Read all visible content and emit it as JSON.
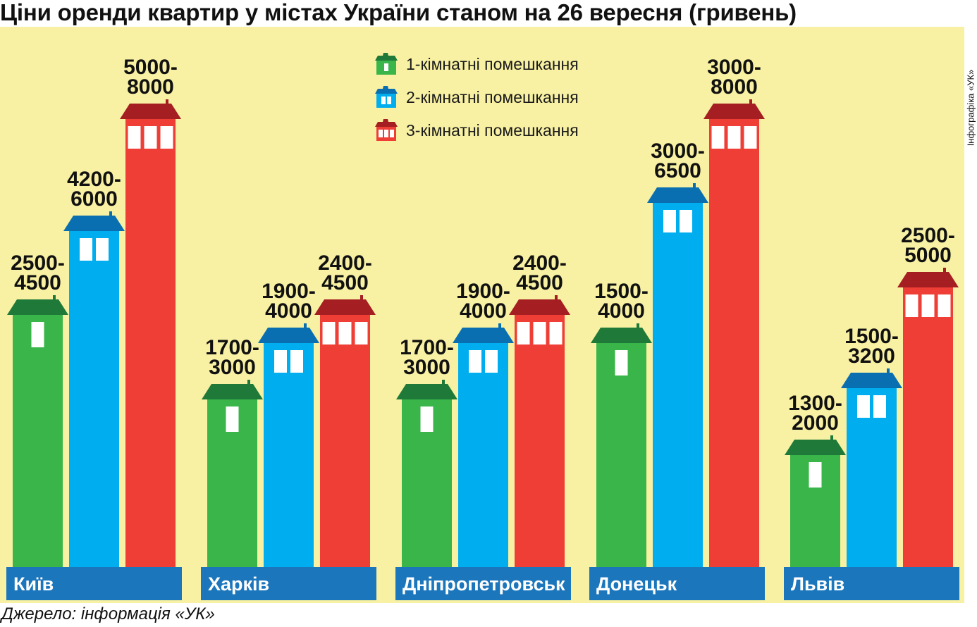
{
  "title": "Ціни оренди квартир у містах України станом на 26 вересня (гривень)",
  "credit": "Інфографіка «УК»",
  "source": "Джерело: інформація «УК»",
  "colors": {
    "background": "#f8f1a3",
    "one_room": "#3ab54a",
    "two_room": "#00aeef",
    "three_room": "#ee3e36",
    "city_box": "#1b76bc"
  },
  "chart_data": {
    "type": "bar",
    "title": "Ціни оренди квартир у містах України станом на 26 вересня (гривень)",
    "categories": [
      "Київ",
      "Харків",
      "Дніпропетровськ",
      "Донецьк",
      "Львів"
    ],
    "series": [
      {
        "name": "1-кімнатні помешкання",
        "labels": [
          "2500-\n4500",
          "1700-\n3000",
          "1700-\n3000",
          "1500-\n4000",
          "1300-\n2000"
        ],
        "ranges": [
          [
            2500,
            4500
          ],
          [
            1700,
            3000
          ],
          [
            1700,
            3000
          ],
          [
            1500,
            4000
          ],
          [
            1300,
            2000
          ]
        ]
      },
      {
        "name": "2-кімнатні помешкання",
        "labels": [
          "4200-\n6000",
          "1900-\n4000",
          "1900-\n4000",
          "3000-\n6500",
          "1500-\n3200"
        ],
        "ranges": [
          [
            4200,
            6000
          ],
          [
            1900,
            4000
          ],
          [
            1900,
            4000
          ],
          [
            3000,
            6500
          ],
          [
            1500,
            3200
          ]
        ]
      },
      {
        "name": "3-кімнатні помешкання",
        "labels": [
          "5000-\n8000",
          "2400-\n4500",
          "2400-\n4500",
          "3000-\n8000",
          "2500-\n5000"
        ],
        "ranges": [
          [
            5000,
            8000
          ],
          [
            2400,
            4500
          ],
          [
            2400,
            4500
          ],
          [
            3000,
            8000
          ],
          [
            2500,
            5000
          ]
        ]
      }
    ],
    "legend_position": "top-center",
    "grid": false
  }
}
